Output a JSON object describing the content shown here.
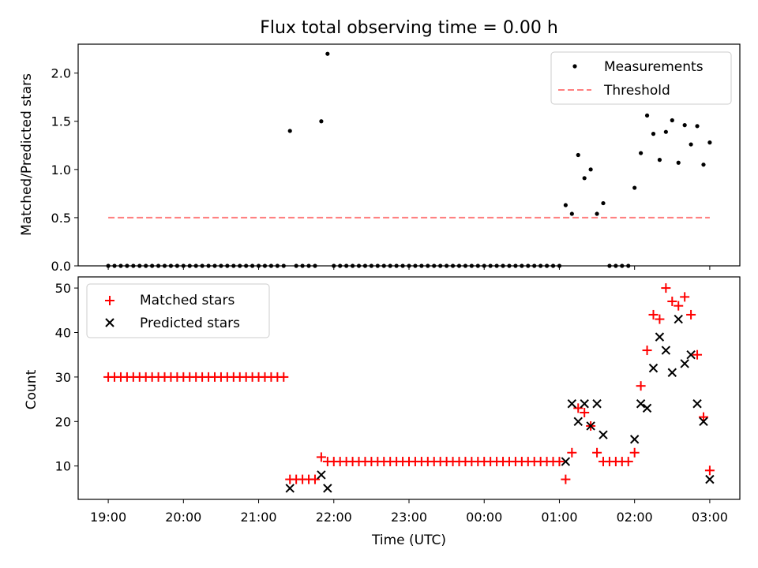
{
  "chart_data": [
    {
      "type": "scatter",
      "title": "Flux total observing time = 0.00 h",
      "xlabel": "",
      "ylabel": "Matched/Predicted stars",
      "ylim": [
        0,
        2.3
      ],
      "yticks": [
        "0.0",
        "0.5",
        "1.0",
        "1.5",
        "2.0"
      ],
      "ytick_values": [
        0,
        0.5,
        1.0,
        1.5,
        2.0
      ],
      "xlim_hours": [
        18.6,
        27.4
      ],
      "legend_position": "top-right",
      "series": [
        {
          "name": "Measurements",
          "marker": "dot",
          "color": "#000000",
          "points": [
            [
              19.0,
              0
            ],
            [
              19.0833,
              0
            ],
            [
              19.1667,
              0
            ],
            [
              19.25,
              0
            ],
            [
              19.3333,
              0
            ],
            [
              19.4167,
              0
            ],
            [
              19.5,
              0
            ],
            [
              19.5833,
              0
            ],
            [
              19.6667,
              0
            ],
            [
              19.75,
              0
            ],
            [
              19.8333,
              0
            ],
            [
              19.9167,
              0
            ],
            [
              20.0,
              0
            ],
            [
              20.0833,
              0
            ],
            [
              20.1667,
              0
            ],
            [
              20.25,
              0
            ],
            [
              20.3333,
              0
            ],
            [
              20.4167,
              0
            ],
            [
              20.5,
              0
            ],
            [
              20.5833,
              0
            ],
            [
              20.6667,
              0
            ],
            [
              20.75,
              0
            ],
            [
              20.8333,
              0
            ],
            [
              20.9167,
              0
            ],
            [
              21.0,
              0
            ],
            [
              21.0833,
              0
            ],
            [
              21.1667,
              0
            ],
            [
              21.25,
              0
            ],
            [
              21.3333,
              0
            ],
            [
              21.4167,
              1.4
            ],
            [
              21.5,
              0
            ],
            [
              21.5833,
              0
            ],
            [
              21.6667,
              0
            ],
            [
              21.75,
              0
            ],
            [
              21.8333,
              1.5
            ],
            [
              21.9167,
              2.2
            ],
            [
              22.0,
              0
            ],
            [
              22.0833,
              0
            ],
            [
              22.1667,
              0
            ],
            [
              22.25,
              0
            ],
            [
              22.3333,
              0
            ],
            [
              22.4167,
              0
            ],
            [
              22.5,
              0
            ],
            [
              22.5833,
              0
            ],
            [
              22.6667,
              0
            ],
            [
              22.75,
              0
            ],
            [
              22.8333,
              0
            ],
            [
              22.9167,
              0
            ],
            [
              23.0,
              0
            ],
            [
              23.0833,
              0
            ],
            [
              23.1667,
              0
            ],
            [
              23.25,
              0
            ],
            [
              23.3333,
              0
            ],
            [
              23.4167,
              0
            ],
            [
              23.5,
              0
            ],
            [
              23.5833,
              0
            ],
            [
              23.6667,
              0
            ],
            [
              23.75,
              0
            ],
            [
              23.8333,
              0
            ],
            [
              23.9167,
              0
            ],
            [
              24.0,
              0
            ],
            [
              24.0833,
              0
            ],
            [
              24.1667,
              0
            ],
            [
              24.25,
              0
            ],
            [
              24.3333,
              0
            ],
            [
              24.4167,
              0
            ],
            [
              24.5,
              0
            ],
            [
              24.5833,
              0
            ],
            [
              24.6667,
              0
            ],
            [
              24.75,
              0
            ],
            [
              24.8333,
              0
            ],
            [
              24.9167,
              0
            ],
            [
              25.0,
              0
            ],
            [
              25.0833,
              0.63
            ],
            [
              25.1667,
              0.54
            ],
            [
              25.25,
              1.15
            ],
            [
              25.3333,
              0.91
            ],
            [
              25.4167,
              1.0
            ],
            [
              25.5,
              0.54
            ],
            [
              25.5833,
              0.65
            ],
            [
              25.6667,
              0
            ],
            [
              25.75,
              0
            ],
            [
              25.8333,
              0
            ],
            [
              25.9167,
              0
            ],
            [
              26.0,
              0.81
            ],
            [
              26.0833,
              1.17
            ],
            [
              26.1667,
              1.56
            ],
            [
              26.25,
              1.37
            ],
            [
              26.3333,
              1.1
            ],
            [
              26.4167,
              1.39
            ],
            [
              26.5,
              1.51
            ],
            [
              26.5833,
              1.07
            ],
            [
              26.6667,
              1.46
            ],
            [
              26.75,
              1.26
            ],
            [
              26.8333,
              1.45
            ],
            [
              26.9167,
              1.05
            ],
            [
              27.0,
              1.28
            ]
          ]
        },
        {
          "name": "Threshold",
          "marker": "dashed-line",
          "color": "#ff7f7f",
          "points": [
            [
              19.0,
              0.5
            ],
            [
              27.0,
              0.5
            ]
          ]
        }
      ]
    },
    {
      "type": "scatter",
      "title": "",
      "xlabel": "Time (UTC)",
      "ylabel": "Count",
      "ylim": [
        2.5,
        52.5
      ],
      "yticks": [
        "10",
        "20",
        "30",
        "40",
        "50"
      ],
      "ytick_values": [
        10,
        20,
        30,
        40,
        50
      ],
      "xlim_hours": [
        18.6,
        27.4
      ],
      "xticks": [
        "19:00",
        "20:00",
        "21:00",
        "22:00",
        "23:00",
        "00:00",
        "01:00",
        "02:00",
        "03:00"
      ],
      "xtick_values": [
        19,
        20,
        21,
        22,
        23,
        24,
        25,
        26,
        27
      ],
      "legend_position": "top-left",
      "series": [
        {
          "name": "Matched stars",
          "marker": "plus",
          "color": "#ff0000",
          "points": [
            [
              19.0,
              30
            ],
            [
              19.0833,
              30
            ],
            [
              19.1667,
              30
            ],
            [
              19.25,
              30
            ],
            [
              19.3333,
              30
            ],
            [
              19.4167,
              30
            ],
            [
              19.5,
              30
            ],
            [
              19.5833,
              30
            ],
            [
              19.6667,
              30
            ],
            [
              19.75,
              30
            ],
            [
              19.8333,
              30
            ],
            [
              19.9167,
              30
            ],
            [
              20.0,
              30
            ],
            [
              20.0833,
              30
            ],
            [
              20.1667,
              30
            ],
            [
              20.25,
              30
            ],
            [
              20.3333,
              30
            ],
            [
              20.4167,
              30
            ],
            [
              20.5,
              30
            ],
            [
              20.5833,
              30
            ],
            [
              20.6667,
              30
            ],
            [
              20.75,
              30
            ],
            [
              20.8333,
              30
            ],
            [
              20.9167,
              30
            ],
            [
              21.0,
              30
            ],
            [
              21.0833,
              30
            ],
            [
              21.1667,
              30
            ],
            [
              21.25,
              30
            ],
            [
              21.3333,
              30
            ],
            [
              21.4167,
              7
            ],
            [
              21.5,
              7
            ],
            [
              21.5833,
              7
            ],
            [
              21.6667,
              7
            ],
            [
              21.75,
              7
            ],
            [
              21.8333,
              12
            ],
            [
              21.9167,
              11
            ],
            [
              22.0,
              11
            ],
            [
              22.0833,
              11
            ],
            [
              22.1667,
              11
            ],
            [
              22.25,
              11
            ],
            [
              22.3333,
              11
            ],
            [
              22.4167,
              11
            ],
            [
              22.5,
              11
            ],
            [
              22.5833,
              11
            ],
            [
              22.6667,
              11
            ],
            [
              22.75,
              11
            ],
            [
              22.8333,
              11
            ],
            [
              22.9167,
              11
            ],
            [
              23.0,
              11
            ],
            [
              23.0833,
              11
            ],
            [
              23.1667,
              11
            ],
            [
              23.25,
              11
            ],
            [
              23.3333,
              11
            ],
            [
              23.4167,
              11
            ],
            [
              23.5,
              11
            ],
            [
              23.5833,
              11
            ],
            [
              23.6667,
              11
            ],
            [
              23.75,
              11
            ],
            [
              23.8333,
              11
            ],
            [
              23.9167,
              11
            ],
            [
              24.0,
              11
            ],
            [
              24.0833,
              11
            ],
            [
              24.1667,
              11
            ],
            [
              24.25,
              11
            ],
            [
              24.3333,
              11
            ],
            [
              24.4167,
              11
            ],
            [
              24.5,
              11
            ],
            [
              24.5833,
              11
            ],
            [
              24.6667,
              11
            ],
            [
              24.75,
              11
            ],
            [
              24.8333,
              11
            ],
            [
              24.9167,
              11
            ],
            [
              25.0,
              11
            ],
            [
              25.0833,
              7
            ],
            [
              25.1667,
              13
            ],
            [
              25.25,
              23
            ],
            [
              25.3333,
              22
            ],
            [
              25.4167,
              19
            ],
            [
              25.5,
              13
            ],
            [
              25.5833,
              11
            ],
            [
              25.6667,
              11
            ],
            [
              25.75,
              11
            ],
            [
              25.8333,
              11
            ],
            [
              25.9167,
              11
            ],
            [
              26.0,
              13
            ],
            [
              26.0833,
              28
            ],
            [
              26.1667,
              36
            ],
            [
              26.25,
              44
            ],
            [
              26.3333,
              43
            ],
            [
              26.4167,
              50
            ],
            [
              26.5,
              47
            ],
            [
              26.5833,
              46
            ],
            [
              26.6667,
              48
            ],
            [
              26.75,
              44
            ],
            [
              26.8333,
              35
            ],
            [
              26.9167,
              21
            ],
            [
              27.0,
              9
            ]
          ]
        },
        {
          "name": "Predicted stars",
          "marker": "x",
          "color": "#000000",
          "points": [
            [
              21.4167,
              5
            ],
            [
              21.8333,
              8
            ],
            [
              21.9167,
              5
            ],
            [
              25.0833,
              11
            ],
            [
              25.1667,
              24
            ],
            [
              25.25,
              20
            ],
            [
              25.3333,
              24
            ],
            [
              25.4167,
              19
            ],
            [
              25.5,
              24
            ],
            [
              25.5833,
              17
            ],
            [
              26.0,
              16
            ],
            [
              26.0833,
              24
            ],
            [
              26.1667,
              23
            ],
            [
              26.25,
              32
            ],
            [
              26.3333,
              39
            ],
            [
              26.4167,
              36
            ],
            [
              26.5,
              31
            ],
            [
              26.5833,
              43
            ],
            [
              26.6667,
              33
            ],
            [
              26.75,
              35
            ],
            [
              26.8333,
              24
            ],
            [
              26.9167,
              20
            ],
            [
              27.0,
              7
            ]
          ]
        }
      ]
    }
  ]
}
